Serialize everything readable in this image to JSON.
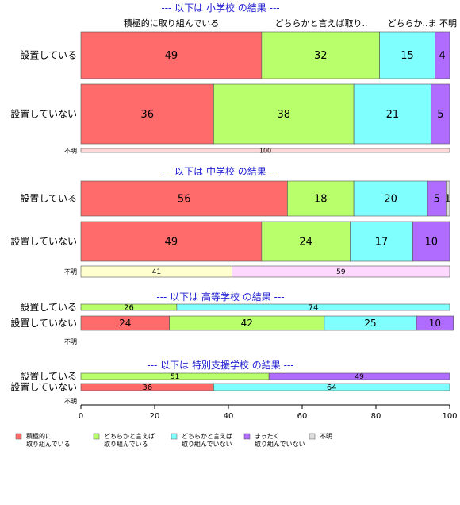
{
  "colors": {
    "積極的に取り組んでいる": "#ff6b6b",
    "どちらかと言えば取り組んでいる": "#b8ff6b",
    "どちらかと言えば取り組んでいない": "#80ffff",
    "まったく取り組んでいない": "#b06bff",
    "不明": "#dcdcdc",
    "light_yellow": "#ffffd0",
    "light_pink": "#ffd8ff",
    "light_red": "#ffd8d8"
  },
  "chart_data": {
    "type": "bar",
    "orientation": "horizontal-stacked-100",
    "column_headers": [
      "積極的に取り組んでいる",
      "どちらかと言えば取り..",
      "どちらか..",
      "ま",
      "不明"
    ],
    "xlim": [
      0,
      100
    ],
    "xticks": [
      "0",
      "20",
      "40",
      "60",
      "80",
      "100"
    ],
    "legend": {
      "placement": "bottom",
      "entries": [
        {
          "key": "積極的に取り組んでいる",
          "lines": [
            "積極的に",
            "取り組んでいる"
          ]
        },
        {
          "key": "どちらかと言えば取り組んでいる",
          "lines": [
            "どちらかと言えば",
            "取り組んでいる"
          ]
        },
        {
          "key": "どちらかと言えば取り組んでいない",
          "lines": [
            "どちらかと言えば",
            "取り組んでいない"
          ]
        },
        {
          "key": "まったく取り組んでいない",
          "lines": [
            "まったく",
            "取り組んでいない"
          ]
        },
        {
          "key": "不明",
          "lines": [
            "不明"
          ]
        }
      ]
    },
    "panels": [
      {
        "title": "--- 以下は 小学校 の結果 ---",
        "rows": [
          {
            "label": "設置している",
            "values": [
              49,
              32,
              15,
              4,
              0
            ],
            "labels": [
              "49",
              "32",
              "15",
              "4",
              ""
            ]
          },
          {
            "label": "設置していない",
            "values": [
              36,
              38,
              21,
              5,
              0
            ],
            "labels": [
              "36",
              "38",
              "21",
              "5",
              ""
            ]
          },
          {
            "label": "不明",
            "values": [
              100
            ],
            "colors": [
              "light_red"
            ],
            "labels": [
              "100"
            ]
          }
        ]
      },
      {
        "title": "--- 以下は 中学校 の結果 ---",
        "rows": [
          {
            "label": "設置している",
            "values": [
              56,
              18,
              20,
              5,
              1
            ],
            "labels": [
              "56",
              "18",
              "20",
              "5",
              "1"
            ]
          },
          {
            "label": "設置していない",
            "values": [
              49,
              24,
              17,
              10,
              0
            ],
            "labels": [
              "49",
              "24",
              "17",
              "10",
              ""
            ]
          },
          {
            "label": "不明",
            "values": [
              41,
              59
            ],
            "colors": [
              "light_yellow",
              "light_pink"
            ],
            "labels": [
              "41",
              "59"
            ]
          }
        ]
      },
      {
        "title": "--- 以下は 高等学校 の結果 ---",
        "rows": [
          {
            "label": "設置している",
            "values": [
              26,
              74
            ],
            "colors": [
              "どちらかと言えば取り組んでいる",
              "どちらかと言えば取り組んでいない"
            ],
            "labels": [
              "26",
              "74"
            ]
          },
          {
            "label": "設置していない",
            "values": [
              24,
              42,
              25,
              10
            ],
            "labels": [
              "24",
              "42",
              "25",
              "10"
            ]
          },
          {
            "label": "不明",
            "values": [],
            "labels": []
          }
        ]
      },
      {
        "title": "--- 以下は 特別支援学校 の結果 ---",
        "rows": [
          {
            "label": "設置している",
            "values": [
              51,
              49
            ],
            "colors": [
              "どちらかと言えば取り組んでいる",
              "まったく取り組んでいない"
            ],
            "labels": [
              "51",
              "49"
            ]
          },
          {
            "label": "設置していない",
            "values": [
              36,
              64
            ],
            "colors": [
              "積極的に取り組んでいる",
              "どちらかと言えば取り組んでいない"
            ],
            "labels": [
              "36",
              "64"
            ]
          },
          {
            "label": "不明",
            "values": [],
            "labels": []
          }
        ]
      }
    ]
  }
}
